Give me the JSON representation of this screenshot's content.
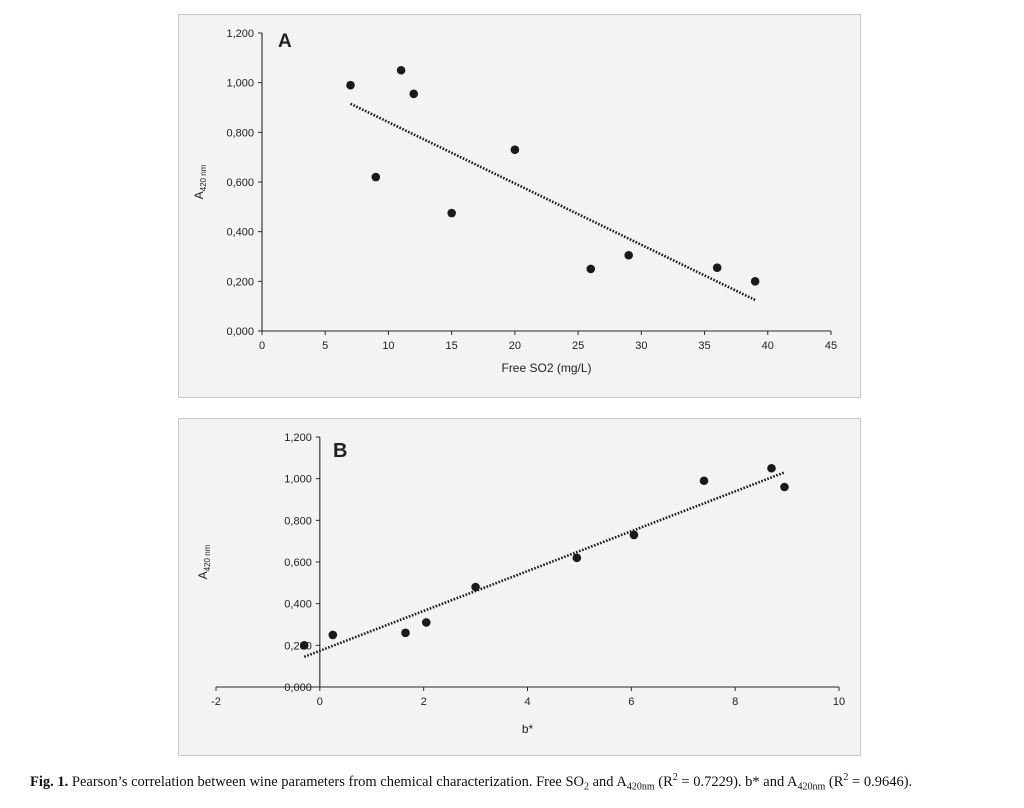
{
  "chart_data": [
    {
      "type": "scatter",
      "panel_label": "A",
      "xlabel": "Free SO2  (mg/L)",
      "ylabel_main": "A",
      "ylabel_sub": "420 nm",
      "xlim": [
        0,
        45
      ],
      "ylim": [
        0,
        1.2
      ],
      "x_ticks": [
        0,
        5,
        10,
        15,
        20,
        25,
        30,
        35,
        40,
        45
      ],
      "y_ticks": [
        0,
        0.2,
        0.4,
        0.6,
        0.8,
        1.0,
        1.2
      ],
      "y_tick_labels": [
        "0,000",
        "0,200",
        "0,400",
        "0,600",
        "0,800",
        "1,000",
        "1,200"
      ],
      "series": [
        {
          "points": [
            {
              "x": 7,
              "y": 0.99
            },
            {
              "x": 9,
              "y": 0.62
            },
            {
              "x": 11,
              "y": 1.05
            },
            {
              "x": 12,
              "y": 0.955
            },
            {
              "x": 15,
              "y": 0.475
            },
            {
              "x": 20,
              "y": 0.73
            },
            {
              "x": 26,
              "y": 0.25
            },
            {
              "x": 29,
              "y": 0.305
            },
            {
              "x": 36,
              "y": 0.255
            },
            {
              "x": 39,
              "y": 0.2
            }
          ]
        }
      ],
      "trendline": {
        "x": [
          7,
          39
        ],
        "y": [
          0.915,
          0.125
        ],
        "style": "dotted"
      }
    },
    {
      "type": "scatter",
      "panel_label": "B",
      "xlabel": "b*",
      "ylabel_main": "A",
      "ylabel_sub": "420 nm",
      "xlim": [
        -2,
        10
      ],
      "ylim": [
        0,
        1.2
      ],
      "x_ticks": [
        -2,
        0,
        2,
        4,
        6,
        8,
        10
      ],
      "y_ticks": [
        0,
        0.2,
        0.4,
        0.6,
        0.8,
        1.0,
        1.2
      ],
      "y_tick_labels": [
        "0,000",
        "0,200",
        "0,400",
        "0,600",
        "0,800",
        "1,000",
        "1,200"
      ],
      "series": [
        {
          "points": [
            {
              "x": -0.3,
              "y": 0.2
            },
            {
              "x": 0.25,
              "y": 0.25
            },
            {
              "x": 1.65,
              "y": 0.26
            },
            {
              "x": 2.05,
              "y": 0.31
            },
            {
              "x": 3.0,
              "y": 0.48
            },
            {
              "x": 4.95,
              "y": 0.62
            },
            {
              "x": 6.05,
              "y": 0.73
            },
            {
              "x": 7.4,
              "y": 0.99
            },
            {
              "x": 8.7,
              "y": 1.05
            },
            {
              "x": 8.95,
              "y": 0.96
            }
          ]
        }
      ],
      "trendline": {
        "x": [
          -0.3,
          8.95
        ],
        "y": [
          0.145,
          1.03
        ],
        "style": "dotted"
      }
    }
  ],
  "caption": {
    "fig_label": "Fig. 1.",
    "part1": " Pearson’s correlation between wine parameters from chemical characterization. Free SO",
    "sub_so2": "2",
    "part2": " and A",
    "sub_a1": "420nm",
    "part3": " (R",
    "sup_r1": "2",
    "part4": " = 0.7229). b* and A",
    "sub_a2": "420nm",
    "part5": " (R",
    "sup_r2": "2",
    "part6": " = 0.9646)."
  },
  "colors": {
    "marker": "#1a1a1a",
    "trendline": "#1a1a1a",
    "axis": "#2a2a2a",
    "panel_background": "#f3f3f2"
  }
}
